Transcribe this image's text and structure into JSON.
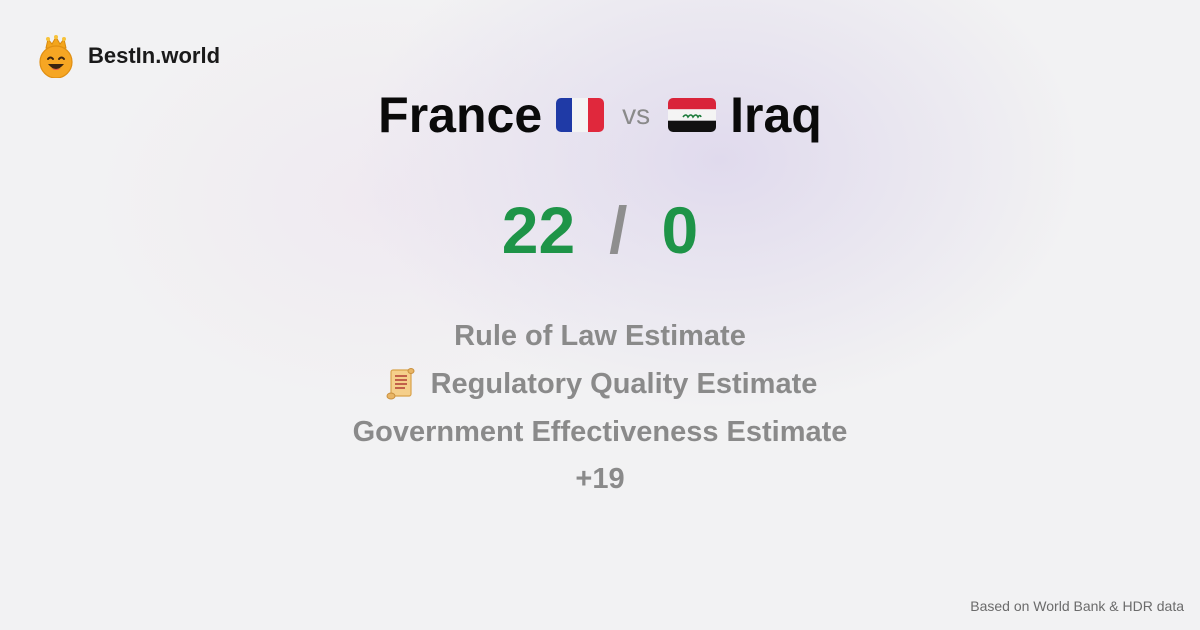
{
  "brand": {
    "name": "BestIn.world",
    "icon": "crowned-smiley-icon"
  },
  "comparison": {
    "left_country": "France",
    "left_flag": "france-flag-icon",
    "vs_label": "vs",
    "right_country": "Iraq",
    "right_flag": "iraq-flag-icon"
  },
  "score": {
    "left": "22",
    "separator": "/",
    "right": "0"
  },
  "metrics": [
    {
      "label": "Rule of Law Estimate"
    },
    {
      "label": "Regulatory Quality Estimate",
      "icon": "scroll-icon"
    },
    {
      "label": "Government Effectiveness Estimate"
    }
  ],
  "more_label": "+19",
  "footer": {
    "source": "Based on World Bank & HDR data"
  },
  "colors": {
    "score_green": "#1e9448",
    "muted_gray": "#8a8a8a"
  }
}
